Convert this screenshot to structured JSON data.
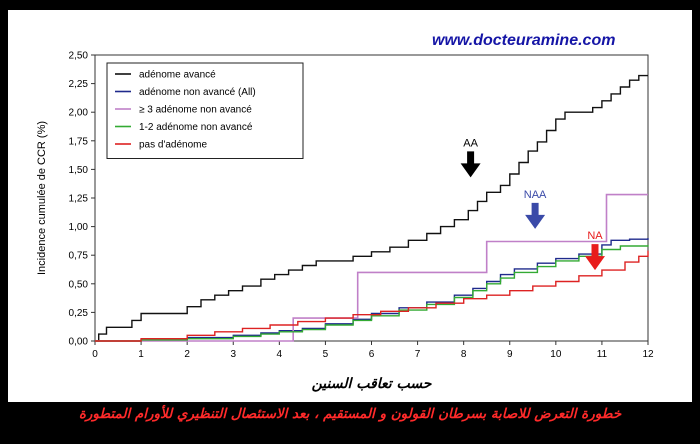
{
  "watermark": "www.docteuramine.com",
  "caption": "خطورة التعرض للاصابة بسرطان القولون و المستقيم ، بعد الاستئصال التنظيري للأورام المتطورة",
  "chart_data": {
    "type": "line",
    "xlabel": "حسب تعاقب السنين",
    "ylabel": "Incidence cumulée de CCR (%)",
    "xlim": [
      0,
      12
    ],
    "ylim": [
      0,
      2.5
    ],
    "xticks": [
      "0",
      "1",
      "2",
      "3",
      "4",
      "5",
      "6",
      "7",
      "8",
      "9",
      "10",
      "11",
      "12"
    ],
    "yticks": [
      "0,00",
      "0,25",
      "0,50",
      "0,75",
      "1,00",
      "1,25",
      "1,50",
      "1,75",
      "2,00",
      "2,25",
      "2,50"
    ],
    "legend_position": "top-left",
    "series": [
      {
        "name": "adénome avancé",
        "color": "#111111",
        "step": true,
        "points": [
          [
            0,
            0
          ],
          [
            0.08,
            0.06
          ],
          [
            0.25,
            0.12
          ],
          [
            0.8,
            0.18
          ],
          [
            1.0,
            0.24
          ],
          [
            1.8,
            0.24
          ],
          [
            2.0,
            0.3
          ],
          [
            2.3,
            0.36
          ],
          [
            2.6,
            0.4
          ],
          [
            2.9,
            0.44
          ],
          [
            3.2,
            0.48
          ],
          [
            3.6,
            0.54
          ],
          [
            3.9,
            0.58
          ],
          [
            4.2,
            0.62
          ],
          [
            4.5,
            0.66
          ],
          [
            4.8,
            0.7
          ],
          [
            5.3,
            0.7
          ],
          [
            5.6,
            0.74
          ],
          [
            6.0,
            0.78
          ],
          [
            6.4,
            0.82
          ],
          [
            6.8,
            0.88
          ],
          [
            7.2,
            0.94
          ],
          [
            7.5,
            1.0
          ],
          [
            7.8,
            1.06
          ],
          [
            8.1,
            1.14
          ],
          [
            8.3,
            1.22
          ],
          [
            8.5,
            1.3
          ],
          [
            8.8,
            1.36
          ],
          [
            9.0,
            1.46
          ],
          [
            9.2,
            1.56
          ],
          [
            9.4,
            1.66
          ],
          [
            9.6,
            1.74
          ],
          [
            9.8,
            1.84
          ],
          [
            10.0,
            1.94
          ],
          [
            10.2,
            2.0
          ],
          [
            10.6,
            2.0
          ],
          [
            10.8,
            2.04
          ],
          [
            11.0,
            2.1
          ],
          [
            11.2,
            2.16
          ],
          [
            11.4,
            2.22
          ],
          [
            11.6,
            2.28
          ],
          [
            11.8,
            2.32
          ],
          [
            12.0,
            2.32
          ]
        ]
      },
      {
        "name": "adénome non avancé (All)",
        "color": "#1f2a8c",
        "step": true,
        "points": [
          [
            0,
            0
          ],
          [
            1.0,
            0.01
          ],
          [
            2.0,
            0.03
          ],
          [
            3.0,
            0.05
          ],
          [
            3.6,
            0.07
          ],
          [
            4.0,
            0.09
          ],
          [
            4.5,
            0.11
          ],
          [
            5.0,
            0.15
          ],
          [
            5.6,
            0.19
          ],
          [
            6.0,
            0.24
          ],
          [
            6.6,
            0.29
          ],
          [
            7.2,
            0.34
          ],
          [
            7.8,
            0.4
          ],
          [
            8.2,
            0.46
          ],
          [
            8.5,
            0.52
          ],
          [
            8.8,
            0.58
          ],
          [
            9.1,
            0.63
          ],
          [
            9.6,
            0.68
          ],
          [
            10.0,
            0.72
          ],
          [
            10.5,
            0.76
          ],
          [
            11.0,
            0.84
          ],
          [
            11.2,
            0.88
          ],
          [
            11.6,
            0.89
          ],
          [
            12.0,
            0.9
          ]
        ]
      },
      {
        "name": "≥ 3 adénome non avancé",
        "color": "#c080c8",
        "step": true,
        "points": [
          [
            0,
            0
          ],
          [
            4.2,
            0.0
          ],
          [
            4.3,
            0.2
          ],
          [
            5.6,
            0.2
          ],
          [
            5.7,
            0.6
          ],
          [
            8.4,
            0.6
          ],
          [
            8.5,
            0.87
          ],
          [
            11.0,
            0.87
          ],
          [
            11.1,
            1.28
          ],
          [
            12.0,
            1.28
          ]
        ]
      },
      {
        "name": "1-2 adénome non avancé",
        "color": "#33aa33",
        "step": true,
        "points": [
          [
            0,
            0
          ],
          [
            1.0,
            0.01
          ],
          [
            2.0,
            0.02
          ],
          [
            3.0,
            0.04
          ],
          [
            3.6,
            0.06
          ],
          [
            4.0,
            0.08
          ],
          [
            4.5,
            0.1
          ],
          [
            5.0,
            0.14
          ],
          [
            5.6,
            0.18
          ],
          [
            6.0,
            0.22
          ],
          [
            6.6,
            0.27
          ],
          [
            7.2,
            0.32
          ],
          [
            7.8,
            0.38
          ],
          [
            8.2,
            0.44
          ],
          [
            8.5,
            0.5
          ],
          [
            8.8,
            0.55
          ],
          [
            9.1,
            0.6
          ],
          [
            9.6,
            0.65
          ],
          [
            10.0,
            0.7
          ],
          [
            10.5,
            0.74
          ],
          [
            11.0,
            0.8
          ],
          [
            11.4,
            0.83
          ],
          [
            12.0,
            0.84
          ]
        ]
      },
      {
        "name": "pas d'adénome",
        "color": "#dd2222",
        "step": true,
        "points": [
          [
            0,
            0
          ],
          [
            1.0,
            0.02
          ],
          [
            2.0,
            0.05
          ],
          [
            2.6,
            0.08
          ],
          [
            3.2,
            0.11
          ],
          [
            3.8,
            0.14
          ],
          [
            4.4,
            0.17
          ],
          [
            5.0,
            0.2
          ],
          [
            5.6,
            0.23
          ],
          [
            6.2,
            0.26
          ],
          [
            6.8,
            0.29
          ],
          [
            7.4,
            0.33
          ],
          [
            8.0,
            0.37
          ],
          [
            8.5,
            0.4
          ],
          [
            9.0,
            0.44
          ],
          [
            9.5,
            0.48
          ],
          [
            10.0,
            0.52
          ],
          [
            10.5,
            0.57
          ],
          [
            11.0,
            0.62
          ],
          [
            11.5,
            0.69
          ],
          [
            11.8,
            0.74
          ],
          [
            12.0,
            0.79
          ]
        ]
      }
    ],
    "annotations": [
      {
        "text": "AA",
        "color": "#000000",
        "x": 8.15,
        "y": 1.43
      },
      {
        "text": "NAA",
        "color": "#3a4aa8",
        "x": 9.55,
        "y": 0.98
      },
      {
        "text": "NA",
        "color": "#e81c1c",
        "x": 10.85,
        "y": 0.62
      }
    ]
  }
}
